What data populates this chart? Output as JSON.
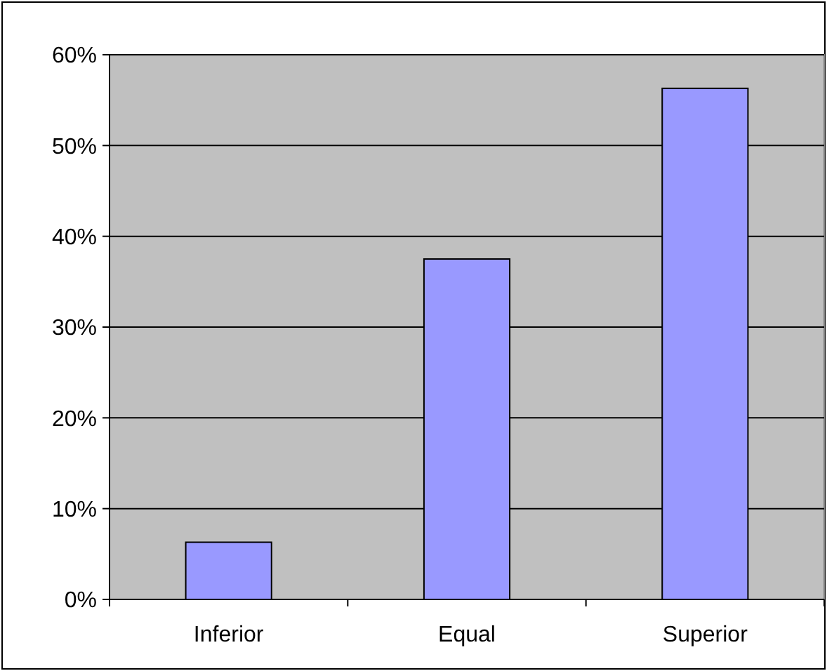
{
  "chart_data": {
    "type": "bar",
    "categories": [
      "Inferior",
      "Equal",
      "Superior"
    ],
    "values": [
      6.3,
      37.5,
      56.3
    ],
    "color": "#9999ff",
    "ylim": [
      0,
      60
    ],
    "yticks": [
      {
        "value": 0,
        "label": "0%"
      },
      {
        "value": 10,
        "label": "10%"
      },
      {
        "value": 20,
        "label": "20%"
      },
      {
        "value": 30,
        "label": "30%"
      },
      {
        "value": 40,
        "label": "40%"
      },
      {
        "value": 50,
        "label": "50%"
      },
      {
        "value": 60,
        "label": "60%"
      }
    ],
    "grid": "y"
  }
}
